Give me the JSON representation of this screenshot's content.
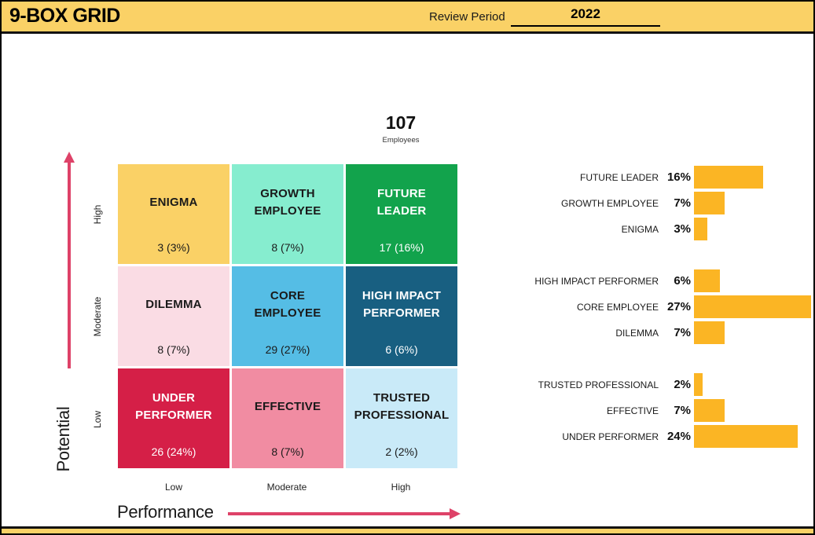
{
  "header": {
    "title": "9-BOX GRID",
    "review_period_label": "Review Period",
    "review_period_value": "2022"
  },
  "kpi": {
    "value": "107",
    "label": "Employees"
  },
  "grid": {
    "cells": [
      {
        "name": "ENIGMA",
        "count": "3 (3%)",
        "bg": "#FAD166",
        "text": "#1A1A1A"
      },
      {
        "name": "GROWTH EMPLOYEE",
        "count": "8 (7%)",
        "bg": "#86EDCF",
        "text": "#1A1A1A"
      },
      {
        "name": "FUTURE LEADER",
        "count": "17 (16%)",
        "bg": "#12A34C",
        "text": "#FFFFFF"
      },
      {
        "name": "DILEMMA",
        "count": "8 (7%)",
        "bg": "#FADCE4",
        "text": "#1A1A1A"
      },
      {
        "name": "CORE EMPLOYEE",
        "count": "29 (27%)",
        "bg": "#55BDE5",
        "text": "#1A1A1A"
      },
      {
        "name": "HIGH IMPACT PERFORMER",
        "count": "6 (6%)",
        "bg": "#185F81",
        "text": "#FFFFFF"
      },
      {
        "name": "UNDER PERFORMER",
        "count": "26 (24%)",
        "bg": "#D51F47",
        "text": "#FFFFFF"
      },
      {
        "name": "EFFECTIVE",
        "count": "8 (7%)",
        "bg": "#F18CA2",
        "text": "#1A1A1A"
      },
      {
        "name": "TRUSTED PROFESSIONAL",
        "count": "2 (2%)",
        "bg": "#C9EAF8",
        "text": "#1A1A1A"
      }
    ]
  },
  "axes": {
    "y_title": "Potential",
    "y_labels": [
      "High",
      "Moderate",
      "Low"
    ],
    "x_title": "Performance",
    "x_labels": [
      "Low",
      "Moderate",
      "High"
    ]
  },
  "chart_data": [
    {
      "type": "heatmap",
      "title": "9-Box Grid matrix (Potential vs Performance)",
      "x_axis": {
        "label": "Performance",
        "ticks": [
          "Low",
          "Moderate",
          "High"
        ]
      },
      "y_axis": {
        "label": "Potential",
        "ticks": [
          "High",
          "Moderate",
          "Low"
        ]
      },
      "total_employees": 107,
      "cells": [
        {
          "potential": "High",
          "performance": "Low",
          "category": "ENIGMA",
          "count": 3,
          "percent": 3
        },
        {
          "potential": "High",
          "performance": "Moderate",
          "category": "GROWTH EMPLOYEE",
          "count": 8,
          "percent": 7
        },
        {
          "potential": "High",
          "performance": "High",
          "category": "FUTURE LEADER",
          "count": 17,
          "percent": 16
        },
        {
          "potential": "Moderate",
          "performance": "Low",
          "category": "DILEMMA",
          "count": 8,
          "percent": 7
        },
        {
          "potential": "Moderate",
          "performance": "Moderate",
          "category": "CORE EMPLOYEE",
          "count": 29,
          "percent": 27
        },
        {
          "potential": "Moderate",
          "performance": "High",
          "category": "HIGH IMPACT PERFORMER",
          "count": 6,
          "percent": 6
        },
        {
          "potential": "Low",
          "performance": "Low",
          "category": "UNDER PERFORMER",
          "count": 26,
          "percent": 24
        },
        {
          "potential": "Low",
          "performance": "Moderate",
          "category": "EFFECTIVE",
          "count": 8,
          "percent": 7
        },
        {
          "potential": "Low",
          "performance": "High",
          "category": "TRUSTED PROFESSIONAL",
          "count": 2,
          "percent": 2
        }
      ]
    },
    {
      "type": "bar",
      "orientation": "horizontal",
      "title": "",
      "xlabel": "",
      "ylabel": "",
      "xlim": [
        0,
        27
      ],
      "grid": false,
      "legend": false,
      "bar_color": "#FBB524",
      "groups": [
        {
          "rows": [
            {
              "label": "FUTURE LEADER",
              "value": 16,
              "value_label": "16%"
            },
            {
              "label": "GROWTH EMPLOYEE",
              "value": 7,
              "value_label": "7%"
            },
            {
              "label": "ENIGMA",
              "value": 3,
              "value_label": "3%"
            }
          ]
        },
        {
          "rows": [
            {
              "label": "HIGH IMPACT PERFORMER",
              "value": 6,
              "value_label": "6%"
            },
            {
              "label": "CORE EMPLOYEE",
              "value": 27,
              "value_label": "27%"
            },
            {
              "label": "DILEMMA",
              "value": 7,
              "value_label": "7%"
            }
          ]
        },
        {
          "rows": [
            {
              "label": "TRUSTED PROFESSIONAL",
              "value": 2,
              "value_label": "2%"
            },
            {
              "label": "EFFECTIVE",
              "value": 7,
              "value_label": "7%"
            },
            {
              "label": "UNDER PERFORMER",
              "value": 24,
              "value_label": "24%"
            }
          ]
        }
      ]
    }
  ],
  "colors": {
    "header_yellow": "#FAD166",
    "bar_orange": "#FBB524",
    "arrow_pink": "#DE4268"
  }
}
